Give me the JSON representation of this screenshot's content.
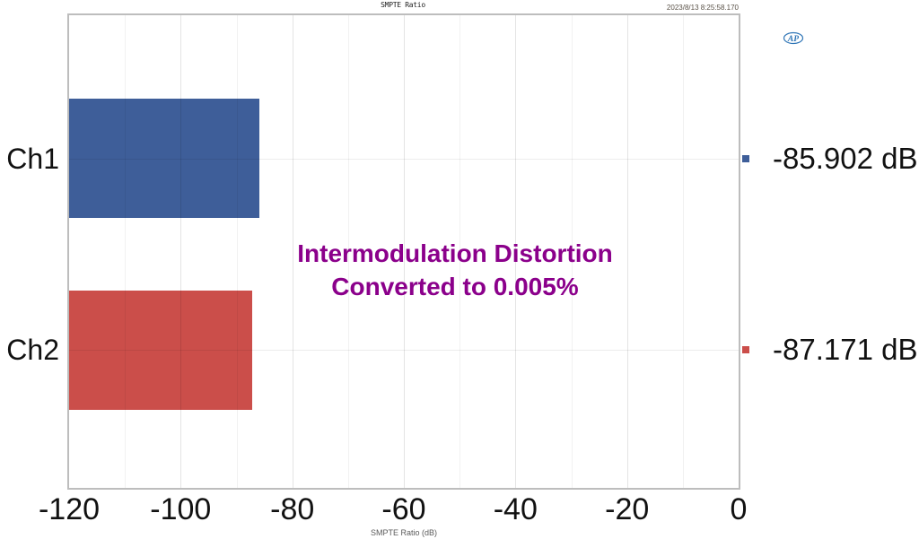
{
  "header": {
    "timestamp": "2023/8/13 8:25:58.170",
    "logo_text": "AP",
    "logo_color": "#2E75B6"
  },
  "chart_data": {
    "type": "bar",
    "orientation": "horizontal",
    "title": "SMPTE Ratio",
    "xlabel": "SMPTE Ratio (dB)",
    "xlim": [
      -120,
      0
    ],
    "xticks": [
      -120,
      -100,
      -80,
      -60,
      -40,
      -20,
      0
    ],
    "minor_tick_step": 10,
    "grid": true,
    "legend_position": "right",
    "categories": [
      "Ch1",
      "Ch2"
    ],
    "values": [
      -85.902,
      -87.171
    ],
    "value_labels": [
      "-85.902 dB",
      "-87.171 dB"
    ],
    "bar_colors": [
      "#3E5E99",
      "#CB4E4A"
    ],
    "annotation": {
      "lines": [
        "Intermodulation Distortion",
        "Converted to 0.005%"
      ],
      "color": "#8B008B"
    }
  }
}
